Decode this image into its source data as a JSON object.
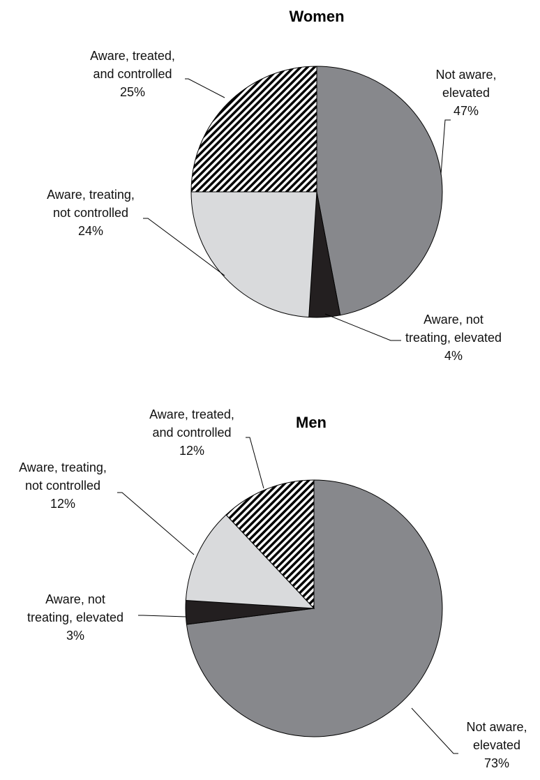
{
  "chart_data": [
    {
      "type": "pie",
      "title": "Women",
      "categories": [
        "Not aware, elevated",
        "Aware, not treating, elevated",
        "Aware, treating, not controlled",
        "Aware, treated, and controlled"
      ],
      "values": [
        47,
        4,
        24,
        25
      ],
      "value_labels": [
        "47%",
        "4%",
        "24%",
        "25%"
      ],
      "colors": [
        "#87888c",
        "#231f20",
        "#d9dadc",
        "#000000"
      ],
      "hatch": [
        false,
        false,
        false,
        true
      ]
    },
    {
      "type": "pie",
      "title": "Men",
      "categories": [
        "Not aware, elevated",
        "Aware, not treating, elevated",
        "Aware, treating, not controlled",
        "Aware, treated, and controlled"
      ],
      "values": [
        73,
        3,
        12,
        12
      ],
      "value_labels": [
        "73%",
        "3%",
        "12%",
        "12%"
      ],
      "colors": [
        "#87888c",
        "#231f20",
        "#d9dadc",
        "#000000"
      ],
      "hatch": [
        false,
        false,
        false,
        true
      ]
    }
  ]
}
